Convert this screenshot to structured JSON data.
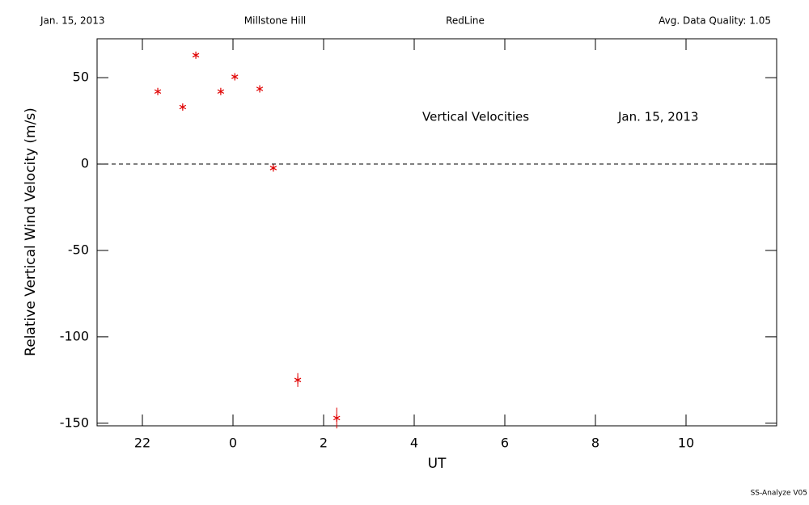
{
  "chart_data": {
    "type": "scatter",
    "header": {
      "date": "Jan. 15, 2013",
      "site": "Millstone Hill",
      "filter": "RedLine",
      "quality": "Avg. Data Quality: 1.05"
    },
    "annotations": [
      "Vertical Velocities",
      "Jan. 15, 2013"
    ],
    "footer": "SS-Analyze V05",
    "xlabel": "UT",
    "ylabel": "Relative Vertical Wind Velocity (m/s)",
    "color": "#e00000",
    "x": [
      -1.66,
      -1.11,
      -0.82,
      -0.27,
      0.04,
      0.59,
      0.89,
      1.43,
      2.29
    ],
    "values": [
      42,
      33,
      63,
      42,
      50.5,
      43.5,
      -2.3,
      -125,
      -147
    ],
    "errors": [
      1,
      1,
      1,
      1,
      1,
      1,
      1,
      4,
      6
    ],
    "zero_line": 0,
    "xlim": [
      -3,
      12
    ],
    "xticks": [
      {
        "value": -2,
        "label": "22"
      },
      0,
      2,
      4,
      6,
      8,
      10
    ],
    "ylim": [
      -151.5,
      72.5
    ],
    "yticks": [
      50,
      0,
      -50,
      -100,
      -150
    ]
  }
}
